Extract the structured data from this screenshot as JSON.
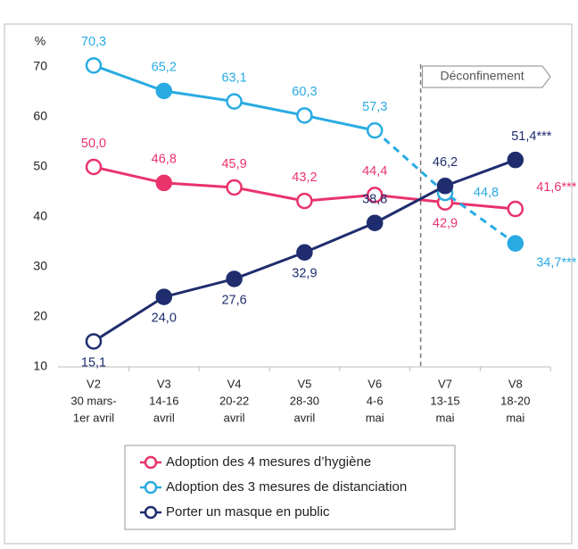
{
  "chart_data": {
    "type": "line",
    "y_unit": "%",
    "categories": [
      [
        "V2",
        "30 mars-",
        "1er avril"
      ],
      [
        "V3",
        "14-16",
        "avril"
      ],
      [
        "V4",
        "20-22",
        "avril"
      ],
      [
        "V5",
        "28-30",
        "avril"
      ],
      [
        "V6",
        "4-6",
        "mai"
      ],
      [
        "V7",
        "13-15",
        "mai"
      ],
      [
        "V8",
        "18-20",
        "mai"
      ]
    ],
    "ylim": [
      10,
      70
    ],
    "yticks": [
      10,
      20,
      30,
      40,
      50,
      60,
      70
    ],
    "grid": false,
    "annotation": {
      "text": "Déconfinement",
      "after_category": 4
    },
    "legend": "bottom",
    "series": [
      {
        "name": "Adoption des 4 mesures d’hygiène",
        "color": "#e8336b",
        "values": [
          50.0,
          46.8,
          45.9,
          43.2,
          44.4,
          42.9,
          41.6
        ],
        "value_labels": [
          "50,0",
          "46,8",
          "45,9",
          "43,2",
          "44,4",
          "42,9",
          "41,6***"
        ],
        "marker_filled": [
          false,
          true,
          false,
          false,
          false,
          false,
          false
        ]
      },
      {
        "name": "Adoption des 3 mesures de distanciation",
        "color": "#29abe2",
        "values": [
          70.3,
          65.2,
          63.1,
          60.3,
          57.3,
          44.8,
          34.7
        ],
        "value_labels": [
          "70,3",
          "65,2",
          "63,1",
          "60,3",
          "57,3",
          "44,8",
          "34,7***"
        ],
        "marker_filled": [
          false,
          true,
          false,
          false,
          false,
          false,
          true
        ],
        "dash_from": 4
      },
      {
        "name": "Porter un masque en public",
        "color": "#1f2d6e",
        "values": [
          15.1,
          24.0,
          27.6,
          32.9,
          38.8,
          46.2,
          51.4
        ],
        "value_labels": [
          "15,1",
          "24,0",
          "27,6",
          "32,9",
          "38,8",
          "46,2",
          "51,4***"
        ],
        "marker_filled": [
          false,
          true,
          true,
          true,
          true,
          true,
          true
        ]
      }
    ]
  }
}
